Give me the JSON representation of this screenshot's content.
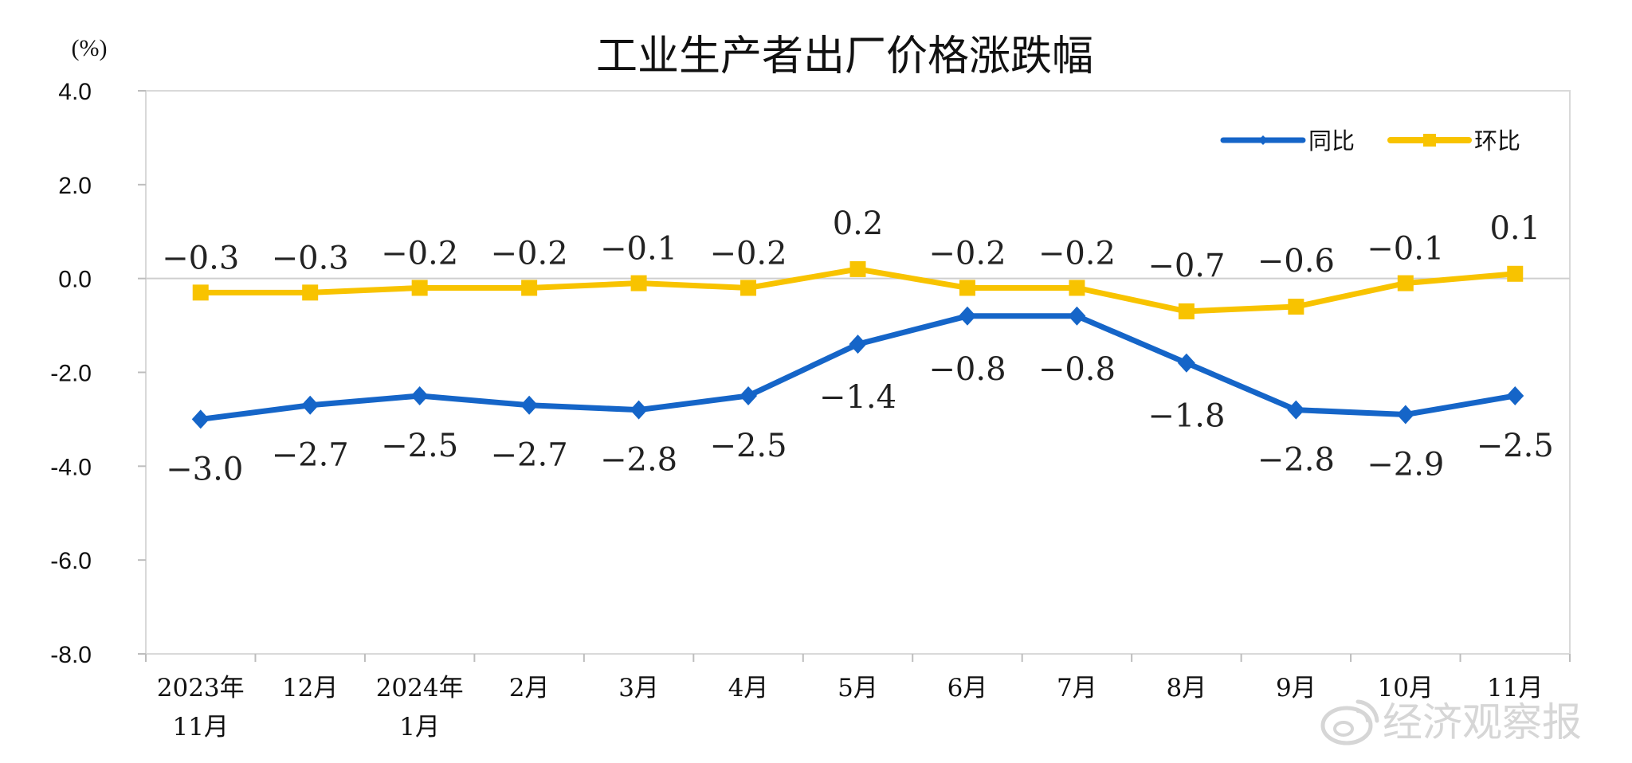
{
  "chart_data": {
    "type": "line",
    "title": "工业生产者出厂价格涨跌幅",
    "unit_label": "(%)",
    "categories": [
      [
        "2023年",
        "11月"
      ],
      [
        "12月"
      ],
      [
        "2024年",
        "1月"
      ],
      [
        "2月"
      ],
      [
        "3月"
      ],
      [
        "4月"
      ],
      [
        "5月"
      ],
      [
        "6月"
      ],
      [
        "7月"
      ],
      [
        "8月"
      ],
      [
        "9月"
      ],
      [
        "10月"
      ],
      [
        "11月"
      ]
    ],
    "ylim": [
      -8.0,
      4.0
    ],
    "yticks": [
      "4.0",
      "2.0",
      "0.0",
      "-2.0",
      "-4.0",
      "-6.0",
      "-8.0"
    ],
    "grid": false,
    "zero_line": true,
    "legend_position": "top-right",
    "series": [
      {
        "name": "同比",
        "color": "#1565c8",
        "marker": "diamond",
        "values": [
          -3.0,
          -2.7,
          -2.5,
          -2.7,
          -2.8,
          -2.5,
          -1.4,
          -0.8,
          -0.8,
          -1.8,
          -2.8,
          -2.9,
          -2.5
        ],
        "labels": [
          "-3.0",
          "-2.7",
          "-2.5",
          "-2.7",
          "-2.8",
          "-2.5",
          "-1.4",
          "-0.8",
          "-0.8",
          "-1.8",
          "-2.8",
          "-2.9",
          "-2.5"
        ],
        "label_position": "below"
      },
      {
        "name": "环比",
        "color": "#f8c300",
        "marker": "square",
        "values": [
          -0.3,
          -0.3,
          -0.2,
          -0.2,
          -0.1,
          -0.2,
          0.2,
          -0.2,
          -0.2,
          -0.7,
          -0.6,
          -0.1,
          0.1
        ],
        "labels": [
          "-0.3",
          "-0.3",
          "-0.2",
          "-0.2",
          "-0.1",
          "-0.2",
          "0.2",
          "-0.2",
          "-0.2",
          "-0.7",
          "-0.6",
          "-0.1",
          "0.1"
        ],
        "label_position": "above"
      }
    ]
  },
  "watermark": {
    "text": "经济观察报",
    "icon": "weibo-icon"
  }
}
